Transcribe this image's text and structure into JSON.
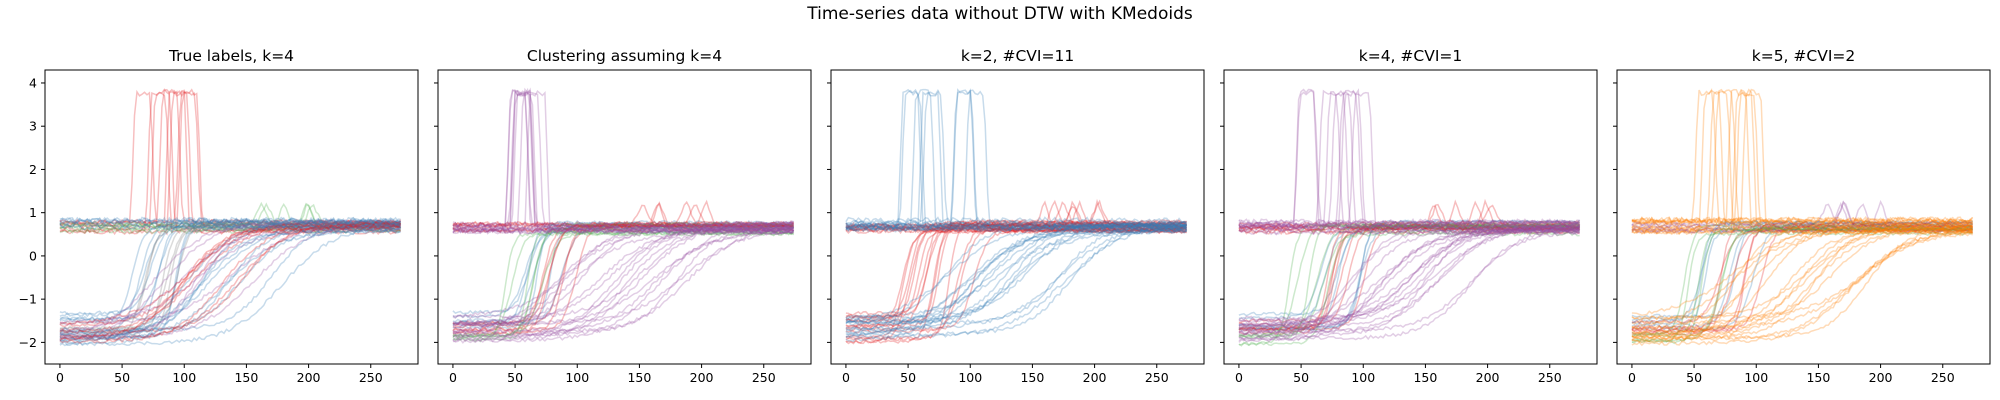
{
  "figure": {
    "suptitle": "Time-series data without DTW with KMedoids"
  },
  "palette": {
    "red": "#e41a1c",
    "blue": "#377eb8",
    "green": "#4daf4a",
    "purple": "#984ea3",
    "orange": "#ff7f00"
  },
  "chart_data": [
    {
      "type": "line",
      "title": "True labels, k=4",
      "xlabel": "",
      "ylabel": "",
      "xlim": [
        -12,
        288
      ],
      "ylim": [
        -2.5,
        4.3
      ],
      "xticks": [
        0,
        50,
        100,
        150,
        200,
        250
      ],
      "yticks": [
        -2,
        -1,
        0,
        1,
        2,
        3,
        4
      ],
      "show_ytick_labels": true,
      "grid": false,
      "series": [
        {
          "group": "spike",
          "color": "#e41a1c",
          "count": 8,
          "high_level": [
            0.55,
            0.8
          ],
          "spike_peak": 3.85,
          "spike_x": [
            50,
            105
          ]
        },
        {
          "group": "bump",
          "color": "#4daf4a",
          "count": 6,
          "start_level": [
            0.55,
            0.75
          ],
          "bump_peak": 1.25,
          "bump_x": [
            150,
            205
          ]
        },
        {
          "group": "fast_rise",
          "color": "#377eb8",
          "count": 8,
          "low_level": [
            -1.9,
            -1.3
          ],
          "rise_x": [
            55,
            100
          ],
          "end_level": [
            0.55,
            0.8
          ]
        },
        {
          "group": "fast_rise",
          "color": "#7f7f7f",
          "count": 6,
          "low_level": [
            -1.9,
            -1.3
          ],
          "rise_x": [
            55,
            100
          ],
          "end_level": [
            0.55,
            0.8
          ]
        },
        {
          "group": "slow_rise",
          "color": "#984ea3",
          "count": 8,
          "low_level": [
            -2.0,
            -1.4
          ],
          "rise_x": [
            75,
            170
          ],
          "end_level": [
            0.55,
            0.8
          ]
        },
        {
          "group": "slow_rise",
          "color": "#377eb8",
          "count": 10,
          "low_level": [
            -2.05,
            -1.6
          ],
          "rise_x": [
            85,
            190
          ],
          "end_level": [
            0.55,
            0.8
          ]
        },
        {
          "group": "slow_rise",
          "color": "#e41a1c",
          "count": 8,
          "low_level": [
            -2.0,
            -1.5
          ],
          "rise_x": [
            80,
            180
          ],
          "end_level": [
            0.55,
            0.8
          ]
        },
        {
          "group": "flat",
          "color": "#377eb8",
          "count": 6,
          "high_level": [
            0.6,
            0.85
          ],
          "spike_peak": 0,
          "spike_x": [
            0,
            0
          ]
        }
      ]
    },
    {
      "type": "line",
      "title": "Clustering assuming k=4",
      "xlabel": "",
      "ylabel": "",
      "xlim": [
        -12,
        288
      ],
      "ylim": [
        -2.5,
        4.3
      ],
      "xticks": [
        0,
        50,
        100,
        150,
        200,
        250
      ],
      "yticks": [
        -2,
        -1,
        0,
        1,
        2,
        3,
        4
      ],
      "show_ytick_labels": false,
      "grid": false,
      "series": [
        {
          "group": "spike",
          "color": "#984ea3",
          "count": 8,
          "high_level": [
            0.55,
            0.8
          ],
          "spike_peak": 3.85,
          "spike_x": [
            50,
            105
          ]
        },
        {
          "group": "bump",
          "color": "#e41a1c",
          "count": 6,
          "start_level": [
            0.55,
            0.75
          ],
          "bump_peak": 1.25,
          "bump_x": [
            150,
            205
          ]
        },
        {
          "group": "fast_rise",
          "color": "#377eb8",
          "count": 7,
          "low_level": [
            -1.7,
            -1.3
          ],
          "rise_x": [
            55,
            100
          ],
          "end_level": [
            0.55,
            0.8
          ]
        },
        {
          "group": "fast_rise",
          "color": "#e41a1c",
          "count": 7,
          "low_level": [
            -1.8,
            -1.5
          ],
          "rise_x": [
            70,
            105
          ],
          "end_level": [
            0.55,
            0.8
          ]
        },
        {
          "group": "fast_rise",
          "color": "#4daf4a",
          "count": 6,
          "low_level": [
            -2.05,
            -1.8
          ],
          "rise_x": [
            40,
            80
          ],
          "end_level": [
            0.5,
            0.75
          ]
        },
        {
          "group": "slow_rise",
          "color": "#984ea3",
          "count": 18,
          "low_level": [
            -2.05,
            -1.4
          ],
          "rise_x": [
            80,
            190
          ],
          "end_level": [
            0.55,
            0.8
          ]
        },
        {
          "group": "flat",
          "color": "#984ea3",
          "count": 8,
          "high_level": [
            0.55,
            0.85
          ],
          "spike_peak": 0,
          "spike_x": [
            0,
            0
          ]
        }
      ]
    },
    {
      "type": "line",
      "title": "k=2, #CVI=11",
      "xlabel": "",
      "ylabel": "",
      "xlim": [
        -12,
        288
      ],
      "ylim": [
        -2.5,
        4.3
      ],
      "xticks": [
        0,
        50,
        100,
        150,
        200,
        250
      ],
      "yticks": [
        -2,
        -1,
        0,
        1,
        2,
        3,
        4
      ],
      "show_ytick_labels": false,
      "grid": false,
      "series": [
        {
          "group": "spike",
          "color": "#377eb8",
          "count": 8,
          "high_level": [
            0.55,
            0.8
          ],
          "spike_peak": 3.85,
          "spike_x": [
            50,
            105
          ]
        },
        {
          "group": "bump",
          "color": "#e41a1c",
          "count": 8,
          "start_level": [
            0.55,
            0.75
          ],
          "bump_peak": 1.25,
          "bump_x": [
            150,
            205
          ]
        },
        {
          "group": "fast_rise",
          "color": "#e41a1c",
          "count": 16,
          "low_level": [
            -2.05,
            -1.3
          ],
          "rise_x": [
            45,
            105
          ],
          "end_level": [
            0.55,
            0.8
          ]
        },
        {
          "group": "slow_rise",
          "color": "#377eb8",
          "count": 18,
          "low_level": [
            -2.05,
            -1.4
          ],
          "rise_x": [
            80,
            190
          ],
          "end_level": [
            0.55,
            0.8
          ]
        },
        {
          "group": "flat",
          "color": "#377eb8",
          "count": 10,
          "high_level": [
            0.55,
            0.85
          ],
          "spike_peak": 0,
          "spike_x": [
            0,
            0
          ]
        }
      ]
    },
    {
      "type": "line",
      "title": "k=4, #CVI=1",
      "xlabel": "",
      "ylabel": "",
      "xlim": [
        -12,
        288
      ],
      "ylim": [
        -2.5,
        4.3
      ],
      "xticks": [
        0,
        50,
        100,
        150,
        200,
        250
      ],
      "yticks": [
        -2,
        -1,
        0,
        1,
        2,
        3,
        4
      ],
      "show_ytick_labels": false,
      "grid": false,
      "series": [
        {
          "group": "spike",
          "color": "#984ea3",
          "count": 8,
          "high_level": [
            0.55,
            0.8
          ],
          "spike_peak": 3.85,
          "spike_x": [
            50,
            105
          ]
        },
        {
          "group": "bump",
          "color": "#e41a1c",
          "count": 6,
          "start_level": [
            0.55,
            0.75
          ],
          "bump_peak": 1.25,
          "bump_x": [
            150,
            205
          ]
        },
        {
          "group": "fast_rise",
          "color": "#377eb8",
          "count": 7,
          "low_level": [
            -1.7,
            -1.3
          ],
          "rise_x": [
            55,
            100
          ],
          "end_level": [
            0.55,
            0.8
          ]
        },
        {
          "group": "fast_rise",
          "color": "#e41a1c",
          "count": 7,
          "low_level": [
            -1.8,
            -1.5
          ],
          "rise_x": [
            70,
            105
          ],
          "end_level": [
            0.55,
            0.8
          ]
        },
        {
          "group": "fast_rise",
          "color": "#4daf4a",
          "count": 6,
          "low_level": [
            -2.05,
            -1.8
          ],
          "rise_x": [
            40,
            80
          ],
          "end_level": [
            0.5,
            0.75
          ]
        },
        {
          "group": "slow_rise",
          "color": "#984ea3",
          "count": 18,
          "low_level": [
            -2.05,
            -1.4
          ],
          "rise_x": [
            80,
            190
          ],
          "end_level": [
            0.55,
            0.8
          ]
        },
        {
          "group": "flat",
          "color": "#984ea3",
          "count": 8,
          "high_level": [
            0.55,
            0.85
          ],
          "spike_peak": 0,
          "spike_x": [
            0,
            0
          ]
        }
      ]
    },
    {
      "type": "line",
      "title": "k=5, #CVI=2",
      "xlabel": "",
      "ylabel": "",
      "xlim": [
        -12,
        288
      ],
      "ylim": [
        -2.5,
        4.3
      ],
      "xticks": [
        0,
        50,
        100,
        150,
        200,
        250
      ],
      "yticks": [
        -2,
        -1,
        0,
        1,
        2,
        3,
        4
      ],
      "show_ytick_labels": false,
      "grid": false,
      "series": [
        {
          "group": "spike",
          "color": "#ff7f00",
          "count": 8,
          "high_level": [
            0.55,
            0.8
          ],
          "spike_peak": 3.85,
          "spike_x": [
            50,
            105
          ]
        },
        {
          "group": "bump",
          "color": "#984ea3",
          "count": 6,
          "start_level": [
            0.55,
            0.75
          ],
          "bump_peak": 1.25,
          "bump_x": [
            150,
            205
          ]
        },
        {
          "group": "fast_rise",
          "color": "#377eb8",
          "count": 6,
          "low_level": [
            -1.7,
            -1.3
          ],
          "rise_x": [
            55,
            100
          ],
          "end_level": [
            0.55,
            0.8
          ]
        },
        {
          "group": "fast_rise",
          "color": "#e41a1c",
          "count": 6,
          "low_level": [
            -1.8,
            -1.5
          ],
          "rise_x": [
            70,
            105
          ],
          "end_level": [
            0.55,
            0.8
          ]
        },
        {
          "group": "fast_rise",
          "color": "#4daf4a",
          "count": 6,
          "low_level": [
            -2.05,
            -1.8
          ],
          "rise_x": [
            40,
            80
          ],
          "end_level": [
            0.5,
            0.75
          ]
        },
        {
          "group": "slow_rise",
          "color": "#ff7f00",
          "count": 18,
          "low_level": [
            -2.05,
            -1.4
          ],
          "rise_x": [
            80,
            190
          ],
          "end_level": [
            0.55,
            0.8
          ]
        },
        {
          "group": "flat",
          "color": "#ff7f00",
          "count": 8,
          "high_level": [
            0.55,
            0.85
          ],
          "spike_peak": 0,
          "spike_x": [
            0,
            0
          ]
        }
      ]
    }
  ]
}
